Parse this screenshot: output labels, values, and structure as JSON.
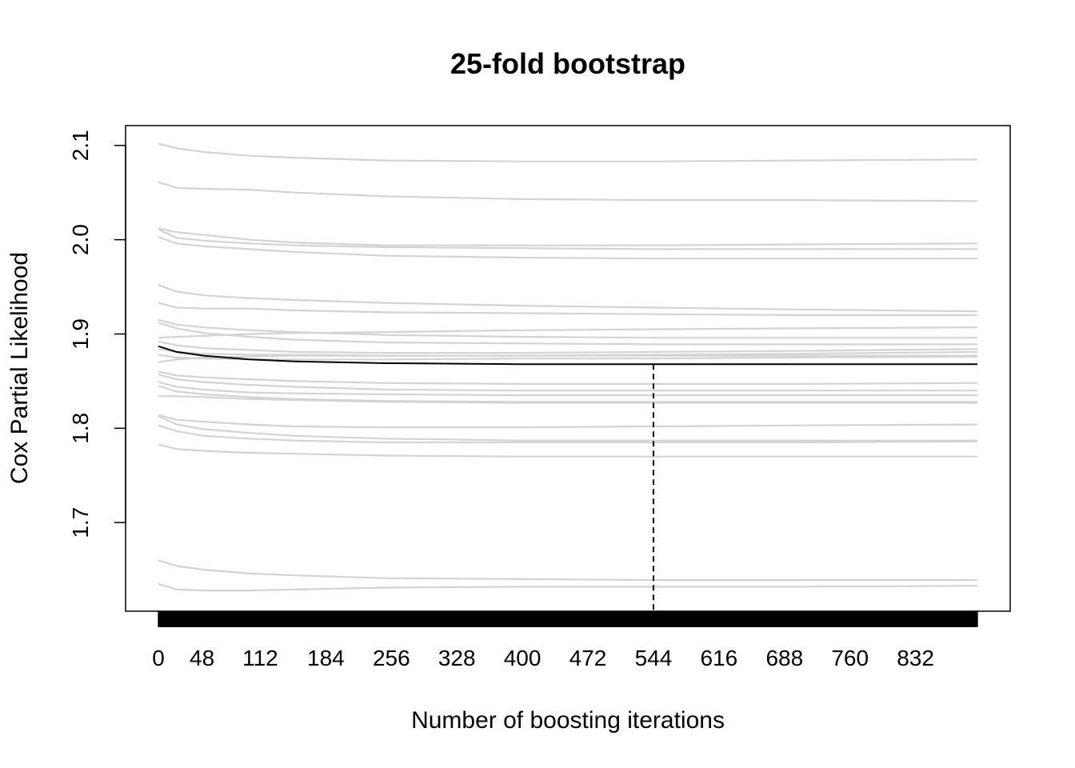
{
  "chart_data": {
    "type": "line",
    "title": "25-fold bootstrap",
    "xlabel": "Number of boosting iterations",
    "ylabel": "Cox Partial Likelihood",
    "xlim": [
      0,
      900
    ],
    "ylim": [
      1.606,
      2.121
    ],
    "x_ticks": [
      "0",
      "48",
      "112",
      "184",
      "256",
      "328",
      "400",
      "472",
      "544",
      "616",
      "688",
      "760",
      "832"
    ],
    "y_ticks": [
      "1.7",
      "1.8",
      "1.9",
      "2.0",
      "2.1"
    ],
    "x": [
      0,
      20,
      50,
      100,
      150,
      250,
      400,
      544,
      700,
      900
    ],
    "colors": {
      "bootstrap": "#d3d3d3",
      "mean": "#000000",
      "frame": "#000000"
    },
    "series": [
      {
        "values": [
          2.102,
          2.097,
          2.093,
          2.089,
          2.087,
          2.084,
          2.083,
          2.083,
          2.084,
          2.085
        ]
      },
      {
        "values": [
          2.061,
          2.055,
          2.054,
          2.053,
          2.05,
          2.046,
          2.043,
          2.042,
          2.042,
          2.041
        ]
      },
      {
        "values": [
          2.012,
          2.008,
          2.005,
          2.0,
          1.997,
          1.994,
          1.994,
          1.994,
          1.995,
          1.996
        ]
      },
      {
        "values": [
          2.011,
          2.002,
          1.999,
          1.996,
          1.994,
          1.992,
          1.991,
          1.99,
          1.99,
          1.99
        ]
      },
      {
        "values": [
          2.003,
          1.996,
          1.993,
          1.99,
          1.987,
          1.983,
          1.981,
          1.98,
          1.98,
          1.98
        ]
      },
      {
        "values": [
          1.952,
          1.945,
          1.941,
          1.938,
          1.936,
          1.933,
          1.93,
          1.928,
          1.926,
          1.924
        ]
      },
      {
        "values": [
          1.933,
          1.928,
          1.927,
          1.927,
          1.925,
          1.923,
          1.922,
          1.921,
          1.92,
          1.92
        ]
      },
      {
        "values": [
          1.915,
          1.91,
          1.907,
          1.904,
          1.902,
          1.899,
          1.897,
          1.896,
          1.896,
          1.896
        ]
      },
      {
        "values": [
          1.912,
          1.906,
          1.901,
          1.897,
          1.894,
          1.891,
          1.89,
          1.889,
          1.889,
          1.889
        ]
      },
      {
        "values": [
          1.896,
          1.897,
          1.898,
          1.9,
          1.901,
          1.902,
          1.904,
          1.905,
          1.906,
          1.907
        ]
      },
      {
        "values": [
          1.892,
          1.888,
          1.885,
          1.883,
          1.881,
          1.88,
          1.88,
          1.881,
          1.882,
          1.884
        ]
      },
      {
        "values": [
          1.884,
          1.881,
          1.879,
          1.878,
          1.878,
          1.877,
          1.877,
          1.878,
          1.879,
          1.881
        ]
      },
      {
        "values": [
          1.878,
          1.875,
          1.874,
          1.873,
          1.873,
          1.873,
          1.874,
          1.874,
          1.875,
          1.876
        ]
      },
      {
        "values": [
          1.87,
          1.873,
          1.875,
          1.876,
          1.877,
          1.877,
          1.877,
          1.877,
          1.877,
          1.877
        ]
      },
      {
        "values": [
          1.86,
          1.856,
          1.854,
          1.852,
          1.85,
          1.848,
          1.847,
          1.847,
          1.847,
          1.848
        ]
      },
      {
        "values": [
          1.857,
          1.852,
          1.849,
          1.846,
          1.844,
          1.841,
          1.84,
          1.84,
          1.84,
          1.84
        ]
      },
      {
        "values": [
          1.849,
          1.844,
          1.841,
          1.838,
          1.837,
          1.836,
          1.835,
          1.835,
          1.835,
          1.835
        ]
      },
      {
        "values": [
          1.845,
          1.839,
          1.836,
          1.833,
          1.831,
          1.829,
          1.828,
          1.828,
          1.828,
          1.828
        ]
      },
      {
        "values": [
          1.834,
          1.834,
          1.833,
          1.831,
          1.83,
          1.828,
          1.827,
          1.827,
          1.827,
          1.827
        ]
      },
      {
        "values": [
          1.814,
          1.809,
          1.807,
          1.804,
          1.802,
          1.801,
          1.801,
          1.802,
          1.803,
          1.804
        ]
      },
      {
        "values": [
          1.813,
          1.804,
          1.799,
          1.795,
          1.792,
          1.789,
          1.787,
          1.787,
          1.787,
          1.787
        ]
      },
      {
        "values": [
          1.803,
          1.797,
          1.792,
          1.789,
          1.787,
          1.785,
          1.785,
          1.785,
          1.785,
          1.786
        ]
      },
      {
        "values": [
          1.783,
          1.778,
          1.776,
          1.774,
          1.773,
          1.771,
          1.77,
          1.77,
          1.77,
          1.77
        ]
      },
      {
        "values": [
          1.66,
          1.654,
          1.65,
          1.646,
          1.644,
          1.641,
          1.64,
          1.639,
          1.639,
          1.639
        ]
      },
      {
        "values": [
          1.635,
          1.629,
          1.628,
          1.628,
          1.629,
          1.631,
          1.632,
          1.632,
          1.632,
          1.633
        ]
      }
    ],
    "mean": {
      "values": [
        1.887,
        1.881,
        1.877,
        1.873,
        1.871,
        1.869,
        1.868,
        1.868,
        1.868,
        1.868
      ]
    },
    "optimal_iteration": 544
  }
}
